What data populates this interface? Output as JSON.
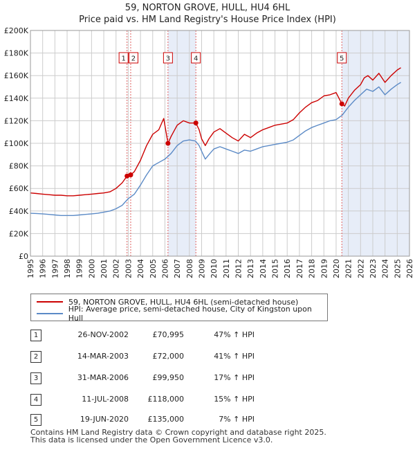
{
  "chart_data": {
    "type": "line",
    "title": "59, NORTON GROVE, HULL, HU4 6HL",
    "subtitle": "Price paid vs. HM Land Registry's House Price Index (HPI)",
    "xlabel": "",
    "ylabel": "",
    "xlim": [
      1995,
      2026
    ],
    "ylim": [
      0,
      200000
    ],
    "x_ticks": [
      "1995",
      "1996",
      "1997",
      "1998",
      "1999",
      "2000",
      "2001",
      "2002",
      "2003",
      "2004",
      "2005",
      "2006",
      "2007",
      "2008",
      "2009",
      "2010",
      "2011",
      "2012",
      "2013",
      "2014",
      "2015",
      "2016",
      "2017",
      "2018",
      "2019",
      "2020",
      "2021",
      "2022",
      "2023",
      "2024",
      "2025",
      "2026"
    ],
    "y_ticks": [
      {
        "value": 0,
        "label": "£0"
      },
      {
        "value": 20000,
        "label": "£20K"
      },
      {
        "value": 40000,
        "label": "£40K"
      },
      {
        "value": 60000,
        "label": "£60K"
      },
      {
        "value": 80000,
        "label": "£80K"
      },
      {
        "value": 100000,
        "label": "£100K"
      },
      {
        "value": 120000,
        "label": "£120K"
      },
      {
        "value": 140000,
        "label": "£140K"
      },
      {
        "value": 160000,
        "label": "£160K"
      },
      {
        "value": 180000,
        "label": "£180K"
      },
      {
        "value": 200000,
        "label": "£200K"
      }
    ],
    "grid": true,
    "colors": {
      "property": "#cc0000",
      "hpi": "#5b8ac6",
      "shade": "#dde5f5",
      "grid": "#cccccc"
    },
    "series": [
      {
        "name": "59, NORTON GROVE, HULL, HU4 6HL (semi-detached house)",
        "color": "#cc0000",
        "x": [
          1995.0,
          1995.5,
          1996.0,
          1996.5,
          1997.0,
          1997.5,
          1998.0,
          1998.5,
          1999.0,
          1999.5,
          2000.0,
          2000.5,
          2001.0,
          2001.5,
          2002.0,
          2002.5,
          2002.9,
          2003.2,
          2003.5,
          2004.0,
          2004.5,
          2005.0,
          2005.5,
          2005.9,
          2006.25,
          2006.5,
          2007.0,
          2007.5,
          2008.0,
          2008.53,
          2008.8,
          2009.0,
          2009.3,
          2009.6,
          2010.0,
          2010.5,
          2011.0,
          2011.5,
          2012.0,
          2012.5,
          2013.0,
          2013.5,
          2014.0,
          2014.5,
          2015.0,
          2015.5,
          2016.0,
          2016.5,
          2017.0,
          2017.5,
          2018.0,
          2018.5,
          2019.0,
          2019.5,
          2020.0,
          2020.47,
          2020.7,
          2021.0,
          2021.5,
          2022.0,
          2022.3,
          2022.6,
          2023.0,
          2023.5,
          2024.0,
          2024.5,
          2025.0,
          2025.3
        ],
        "values": [
          56000,
          55500,
          55000,
          54500,
          54000,
          54000,
          53500,
          53500,
          54000,
          54500,
          55000,
          55500,
          56000,
          57000,
          60000,
          65000,
          70995,
          72000,
          75000,
          85000,
          98000,
          108000,
          112000,
          122000,
          99950,
          106000,
          116000,
          120000,
          118000,
          118000,
          112000,
          104000,
          98000,
          104000,
          110000,
          113000,
          109000,
          105000,
          102000,
          108000,
          105000,
          109000,
          112000,
          114000,
          116000,
          117000,
          118000,
          121000,
          127000,
          132000,
          136000,
          138000,
          142000,
          143000,
          145000,
          135000,
          133000,
          140000,
          147000,
          152000,
          158000,
          160000,
          156000,
          162000,
          154000,
          160000,
          165000,
          167000
        ]
      },
      {
        "name": "HPI: Average price, semi-detached house, City of Kingston upon Hull",
        "color": "#5b8ac6",
        "x": [
          1995.0,
          1995.5,
          1996.0,
          1996.5,
          1997.0,
          1997.5,
          1998.0,
          1998.5,
          1999.0,
          1999.5,
          2000.0,
          2000.5,
          2001.0,
          2001.5,
          2002.0,
          2002.5,
          2003.0,
          2003.5,
          2004.0,
          2004.5,
          2005.0,
          2005.5,
          2006.0,
          2006.5,
          2007.0,
          2007.5,
          2008.0,
          2008.5,
          2008.8,
          2009.0,
          2009.3,
          2009.6,
          2010.0,
          2010.5,
          2011.0,
          2011.5,
          2012.0,
          2012.5,
          2013.0,
          2013.5,
          2014.0,
          2014.5,
          2015.0,
          2015.5,
          2016.0,
          2016.5,
          2017.0,
          2017.5,
          2018.0,
          2018.5,
          2019.0,
          2019.5,
          2020.0,
          2020.5,
          2021.0,
          2021.5,
          2022.0,
          2022.5,
          2023.0,
          2023.5,
          2024.0,
          2024.5,
          2025.0,
          2025.3
        ],
        "values": [
          38000,
          37800,
          37500,
          37000,
          36500,
          36000,
          36000,
          36000,
          36500,
          37000,
          37500,
          38000,
          39000,
          40000,
          42000,
          45000,
          51000,
          55000,
          63000,
          72000,
          80000,
          83000,
          86000,
          91000,
          98000,
          102000,
          103000,
          102000,
          98000,
          93000,
          86000,
          90000,
          95000,
          97000,
          95000,
          93000,
          91000,
          94000,
          93000,
          95000,
          97000,
          98000,
          99000,
          100000,
          101000,
          103000,
          107000,
          111000,
          114000,
          116000,
          118000,
          120000,
          121000,
          125000,
          132000,
          138000,
          143000,
          148000,
          146000,
          150000,
          143000,
          148000,
          152000,
          154000
        ]
      }
    ],
    "shaded_periods": [
      [
        2006.25,
        2008.53
      ],
      [
        2020.47,
        2026.0
      ]
    ],
    "sales": [
      {
        "label": "1",
        "x": 2002.9,
        "value": 70995
      },
      {
        "label": "2",
        "x": 2003.2,
        "value": 72000
      },
      {
        "label": "3",
        "x": 2006.25,
        "value": 99950
      },
      {
        "label": "4",
        "x": 2008.53,
        "value": 118000
      },
      {
        "label": "5",
        "x": 2020.47,
        "value": 135000
      }
    ]
  },
  "legend": {
    "property_label": "59, NORTON GROVE, HULL, HU4 6HL (semi-detached house)",
    "hpi_label": "HPI: Average price, semi-detached house, City of Kingston upon Hull"
  },
  "transactions": [
    {
      "num": "1",
      "date": "26-NOV-2002",
      "price": "£70,995",
      "hpi": "47% ↑ HPI"
    },
    {
      "num": "2",
      "date": "14-MAR-2003",
      "price": "£72,000",
      "hpi": "41% ↑ HPI"
    },
    {
      "num": "3",
      "date": "31-MAR-2006",
      "price": "£99,950",
      "hpi": "17% ↑ HPI"
    },
    {
      "num": "4",
      "date": "11-JUL-2008",
      "price": "£118,000",
      "hpi": "15% ↑ HPI"
    },
    {
      "num": "5",
      "date": "19-JUN-2020",
      "price": "£135,000",
      "hpi": "7% ↑ HPI"
    }
  ],
  "footer": {
    "line1": "Contains HM Land Registry data © Crown copyright and database right 2025.",
    "line2": "This data is licensed under the Open Government Licence v3.0."
  }
}
